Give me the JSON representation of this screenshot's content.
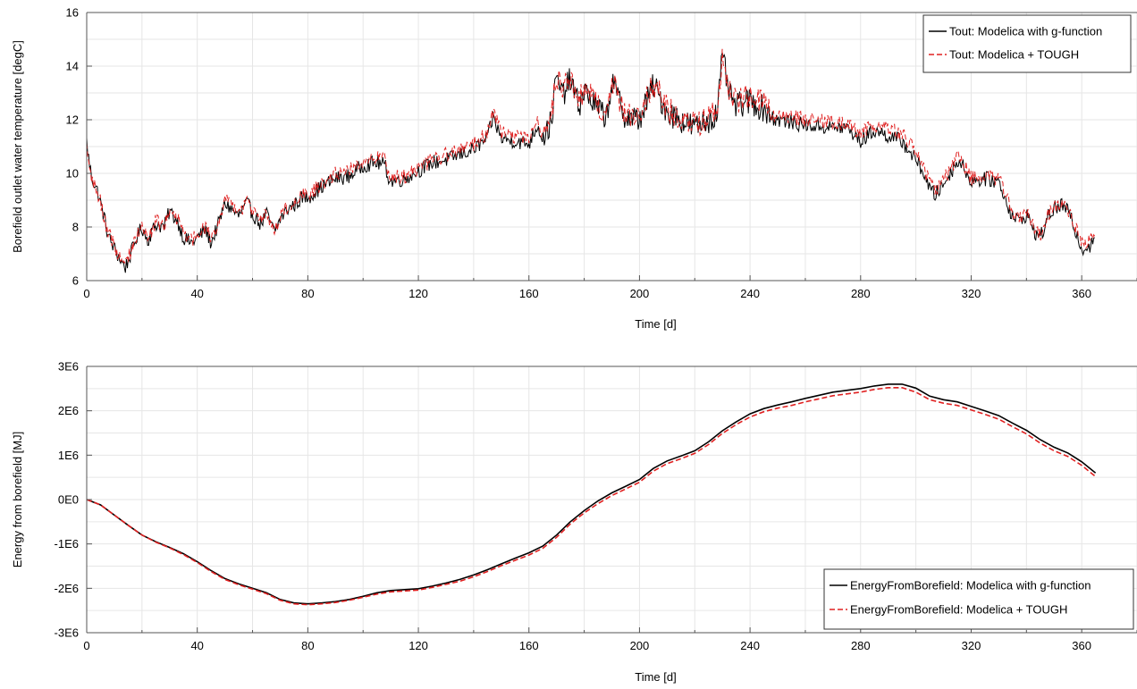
{
  "chart_data": [
    {
      "type": "line",
      "xlabel": "Time [d]",
      "ylabel": "Borefield outlet water temperature [degC]",
      "xlim": [
        0,
        380
      ],
      "ylim": [
        6,
        16
      ],
      "xticks": [
        0,
        40,
        80,
        120,
        160,
        200,
        240,
        280,
        320,
        360
      ],
      "yticks": [
        6,
        8,
        10,
        12,
        14,
        16
      ],
      "ytick_labels": [
        "6",
        "8",
        "10",
        "12",
        "14",
        "16"
      ],
      "grid": true,
      "legend_position": "top-right",
      "noise": 0.28,
      "x": [
        0,
        1,
        2,
        4,
        6,
        8,
        10,
        12,
        14,
        16,
        18,
        20,
        22,
        25,
        28,
        30,
        33,
        35,
        38,
        40,
        43,
        45,
        48,
        50,
        52,
        55,
        58,
        60,
        63,
        65,
        68,
        70,
        73,
        75,
        78,
        80,
        85,
        90,
        95,
        100,
        105,
        108,
        109,
        110,
        115,
        120,
        125,
        130,
        135,
        140,
        145,
        147,
        150,
        155,
        160,
        163,
        165,
        168,
        170,
        172,
        175,
        178,
        180,
        185,
        188,
        190,
        195,
        200,
        203,
        205,
        210,
        215,
        220,
        225,
        228,
        230,
        233,
        235,
        240,
        245,
        250,
        260,
        270,
        275,
        280,
        285,
        290,
        295,
        300,
        303,
        305,
        307,
        310,
        313,
        315,
        318,
        320,
        325,
        330,
        333,
        335,
        338,
        340,
        343,
        345,
        348,
        350,
        353,
        355,
        358,
        360,
        363,
        365
      ],
      "series": [
        {
          "name": "Tout: Modelica with g-function",
          "color": "#000000",
          "dash": "",
          "values": [
            11.2,
            10.3,
            9.8,
            9.3,
            8.5,
            7.6,
            7.2,
            6.8,
            6.5,
            7.0,
            7.6,
            8.0,
            7.5,
            8.1,
            8.0,
            8.6,
            8.2,
            7.6,
            7.4,
            7.6,
            7.9,
            7.4,
            8.2,
            8.9,
            8.7,
            8.4,
            8.9,
            8.5,
            8.1,
            8.5,
            7.8,
            8.3,
            8.7,
            8.8,
            9.1,
            9.1,
            9.5,
            9.8,
            9.9,
            10.3,
            10.4,
            10.3,
            9.9,
            9.7,
            9.8,
            10.1,
            10.4,
            10.5,
            10.7,
            10.9,
            11.3,
            12.1,
            11.3,
            11.2,
            11.1,
            11.8,
            11.3,
            11.9,
            13.6,
            12.9,
            13.5,
            12.5,
            13.1,
            12.4,
            12.1,
            13.4,
            12.1,
            12.0,
            12.8,
            13.3,
            12.3,
            12.0,
            11.7,
            12.0,
            12.2,
            14.3,
            12.8,
            12.5,
            12.7,
            12.4,
            12.0,
            11.8,
            11.7,
            11.7,
            11.2,
            11.6,
            11.4,
            11.2,
            10.5,
            10.0,
            9.4,
            9.2,
            9.6,
            10.1,
            10.5,
            10.1,
            9.7,
            9.8,
            9.7,
            8.9,
            8.4,
            8.2,
            8.5,
            7.8,
            7.6,
            8.4,
            8.7,
            8.8,
            8.6,
            7.8,
            7.2,
            7.3,
            7.8
          ]
        },
        {
          "name": "Tout: Modelica + TOUGH",
          "color": "#e02020",
          "dash": "6,3",
          "values": [
            11.0,
            10.3,
            9.8,
            9.3,
            8.5,
            7.7,
            7.3,
            6.9,
            6.6,
            7.1,
            7.7,
            8.1,
            7.6,
            8.2,
            8.1,
            8.7,
            8.3,
            7.7,
            7.5,
            7.7,
            8.0,
            7.5,
            8.3,
            9.0,
            8.8,
            8.5,
            9.0,
            8.6,
            8.2,
            8.6,
            7.9,
            8.4,
            8.8,
            8.9,
            9.2,
            9.2,
            9.6,
            10.0,
            10.1,
            10.5,
            10.6,
            10.5,
            10.0,
            9.8,
            9.9,
            10.2,
            10.5,
            10.7,
            10.9,
            11.1,
            11.5,
            12.3,
            11.5,
            11.4,
            11.3,
            12.0,
            11.4,
            12.0,
            13.7,
            13.0,
            13.6,
            12.6,
            13.2,
            12.5,
            12.2,
            13.5,
            12.2,
            12.1,
            12.9,
            13.4,
            12.4,
            12.1,
            11.8,
            12.1,
            12.3,
            14.4,
            12.9,
            12.7,
            12.9,
            12.6,
            12.2,
            12.0,
            11.9,
            11.9,
            11.5,
            11.8,
            11.6,
            11.5,
            10.8,
            10.2,
            9.6,
            9.4,
            9.8,
            10.2,
            10.6,
            10.2,
            9.8,
            9.9,
            9.8,
            9.0,
            8.5,
            8.3,
            8.6,
            7.9,
            7.7,
            8.5,
            8.8,
            8.9,
            8.7,
            7.9,
            7.4,
            7.5,
            8.0
          ]
        }
      ]
    },
    {
      "type": "line",
      "xlabel": "Time [d]",
      "ylabel": "Energy from borefield [MJ]",
      "xlim": [
        0,
        380
      ],
      "ylim": [
        -3000000,
        3000000
      ],
      "xticks": [
        0,
        40,
        80,
        120,
        160,
        200,
        240,
        280,
        320,
        360
      ],
      "yticks": [
        -3000000,
        -2000000,
        -1000000,
        0,
        1000000,
        2000000,
        3000000
      ],
      "ytick_labels": [
        "-3E6",
        "-2E6",
        "-1E6",
        "0E0",
        "1E6",
        "2E6",
        "3E6"
      ],
      "grid": true,
      "legend_position": "bottom-right",
      "noise": 0,
      "x": [
        0,
        5,
        10,
        15,
        20,
        25,
        30,
        35,
        40,
        45,
        50,
        55,
        60,
        65,
        70,
        75,
        80,
        85,
        90,
        95,
        100,
        105,
        110,
        115,
        120,
        125,
        130,
        135,
        140,
        145,
        150,
        155,
        160,
        165,
        170,
        175,
        180,
        185,
        190,
        195,
        200,
        205,
        210,
        215,
        220,
        225,
        230,
        235,
        240,
        245,
        250,
        255,
        260,
        265,
        270,
        275,
        280,
        285,
        290,
        295,
        300,
        305,
        310,
        315,
        320,
        325,
        330,
        335,
        340,
        345,
        350,
        355,
        360,
        365
      ],
      "series": [
        {
          "name": "EnergyFromBorefield: Modelica with g-function",
          "color": "#000000",
          "dash": "",
          "values": [
            0,
            -120000,
            -350000,
            -580000,
            -800000,
            -950000,
            -1080000,
            -1220000,
            -1400000,
            -1600000,
            -1780000,
            -1900000,
            -2000000,
            -2100000,
            -2250000,
            -2330000,
            -2350000,
            -2330000,
            -2300000,
            -2250000,
            -2180000,
            -2100000,
            -2050000,
            -2030000,
            -2010000,
            -1950000,
            -1880000,
            -1800000,
            -1700000,
            -1580000,
            -1450000,
            -1320000,
            -1200000,
            -1050000,
            -800000,
            -500000,
            -250000,
            -30000,
            150000,
            300000,
            450000,
            700000,
            870000,
            980000,
            1100000,
            1300000,
            1550000,
            1750000,
            1930000,
            2050000,
            2130000,
            2200000,
            2280000,
            2350000,
            2420000,
            2460000,
            2500000,
            2560000,
            2600000,
            2600000,
            2510000,
            2330000,
            2250000,
            2200000,
            2100000,
            2000000,
            1890000,
            1720000,
            1560000,
            1350000,
            1180000,
            1050000,
            850000,
            600000
          ]
        },
        {
          "name": "EnergyFromBorefield: Modelica + TOUGH",
          "color": "#e02020",
          "dash": "6,3",
          "values": [
            0,
            -120000,
            -350000,
            -580000,
            -800000,
            -960000,
            -1090000,
            -1240000,
            -1420000,
            -1620000,
            -1800000,
            -1920000,
            -2020000,
            -2120000,
            -2270000,
            -2350000,
            -2370000,
            -2350000,
            -2320000,
            -2270000,
            -2200000,
            -2130000,
            -2080000,
            -2060000,
            -2040000,
            -1980000,
            -1910000,
            -1840000,
            -1740000,
            -1620000,
            -1490000,
            -1370000,
            -1250000,
            -1100000,
            -850000,
            -550000,
            -300000,
            -90000,
            90000,
            240000,
            390000,
            640000,
            810000,
            920000,
            1040000,
            1240000,
            1490000,
            1690000,
            1860000,
            1980000,
            2060000,
            2120000,
            2200000,
            2270000,
            2340000,
            2380000,
            2420000,
            2480000,
            2520000,
            2520000,
            2420000,
            2250000,
            2170000,
            2120000,
            2020000,
            1920000,
            1810000,
            1640000,
            1480000,
            1270000,
            1100000,
            970000,
            770000,
            520000
          ]
        }
      ]
    }
  ]
}
